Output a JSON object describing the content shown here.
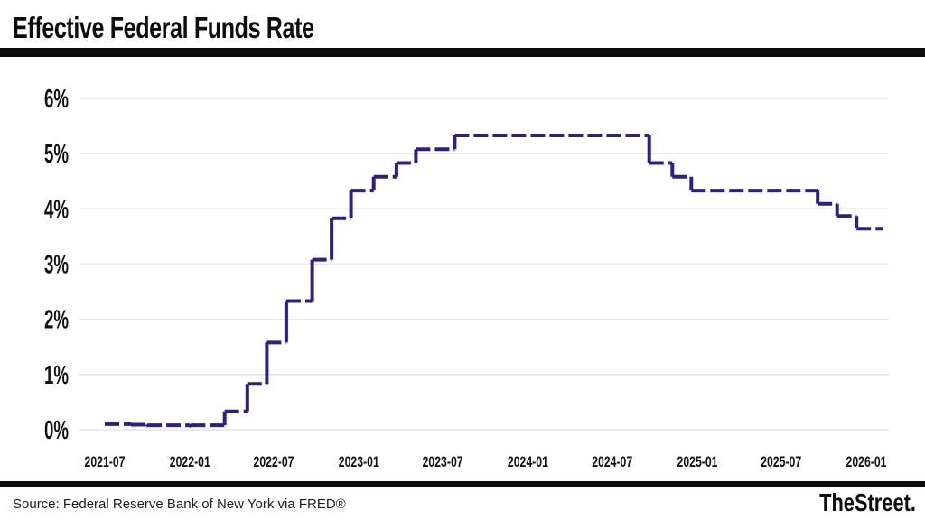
{
  "header": {
    "title": "Effective Federal Funds Rate"
  },
  "footer": {
    "source": "Source: Federal Reserve Bank of New York via FRED®",
    "brand": "TheStreet."
  },
  "colors": {
    "line": "#2e1f82",
    "grid": "#e6e6e6",
    "text": "#111111",
    "bar": "#0d0d0d"
  },
  "chart_data": {
    "type": "line",
    "step": "after",
    "dashed_line": true,
    "title": "Effective Federal Funds Rate",
    "xlabel": "",
    "ylabel": "",
    "ylim": [
      0,
      6
    ],
    "grid": true,
    "legend": false,
    "y_ticks": [
      {
        "label": "0%",
        "value": 0
      },
      {
        "label": "1%",
        "value": 1
      },
      {
        "label": "2%",
        "value": 2
      },
      {
        "label": "3%",
        "value": 3
      },
      {
        "label": "4%",
        "value": 4
      },
      {
        "label": "5%",
        "value": 5
      },
      {
        "label": "6%",
        "value": 6
      }
    ],
    "x_ticks": [
      {
        "label": "2021-07",
        "date": "2021-07-01"
      },
      {
        "label": "2022-01",
        "date": "2022-01-01"
      },
      {
        "label": "2022-07",
        "date": "2022-07-01"
      },
      {
        "label": "2023-01",
        "date": "2023-01-01"
      },
      {
        "label": "2023-07",
        "date": "2023-07-01"
      },
      {
        "label": "2024-01",
        "date": "2024-01-01"
      },
      {
        "label": "2024-07",
        "date": "2024-07-01"
      },
      {
        "label": "2025-01",
        "date": "2025-01-01"
      },
      {
        "label": "2025-07",
        "date": "2025-07-01"
      },
      {
        "label": "2026-01",
        "date": "2026-01-01"
      }
    ],
    "series": [
      {
        "name": "Effective Federal Funds Rate",
        "unit": "percent",
        "points": [
          [
            "2021-07-01",
            0.1
          ],
          [
            "2021-08-27",
            0.09
          ],
          [
            "2021-09-30",
            0.06
          ],
          [
            "2021-10-01",
            0.08
          ],
          [
            "2021-12-31",
            0.07
          ],
          [
            "2022-01-03",
            0.08
          ],
          [
            "2022-03-17",
            0.33
          ],
          [
            "2022-05-05",
            0.83
          ],
          [
            "2022-06-16",
            1.58
          ],
          [
            "2022-07-28",
            2.33
          ],
          [
            "2022-09-22",
            3.08
          ],
          [
            "2022-11-03",
            3.83
          ],
          [
            "2022-12-15",
            4.33
          ],
          [
            "2023-02-02",
            4.58
          ],
          [
            "2023-03-23",
            4.83
          ],
          [
            "2023-05-04",
            5.08
          ],
          [
            "2023-07-27",
            5.33
          ],
          [
            "2024-09-19",
            4.83
          ],
          [
            "2024-11-08",
            4.58
          ],
          [
            "2024-12-19",
            4.33
          ],
          [
            "2025-09-18",
            4.09
          ],
          [
            "2025-10-30",
            3.87
          ],
          [
            "2025-12-11",
            3.64
          ],
          [
            "2026-02-06",
            3.64
          ]
        ]
      }
    ]
  }
}
